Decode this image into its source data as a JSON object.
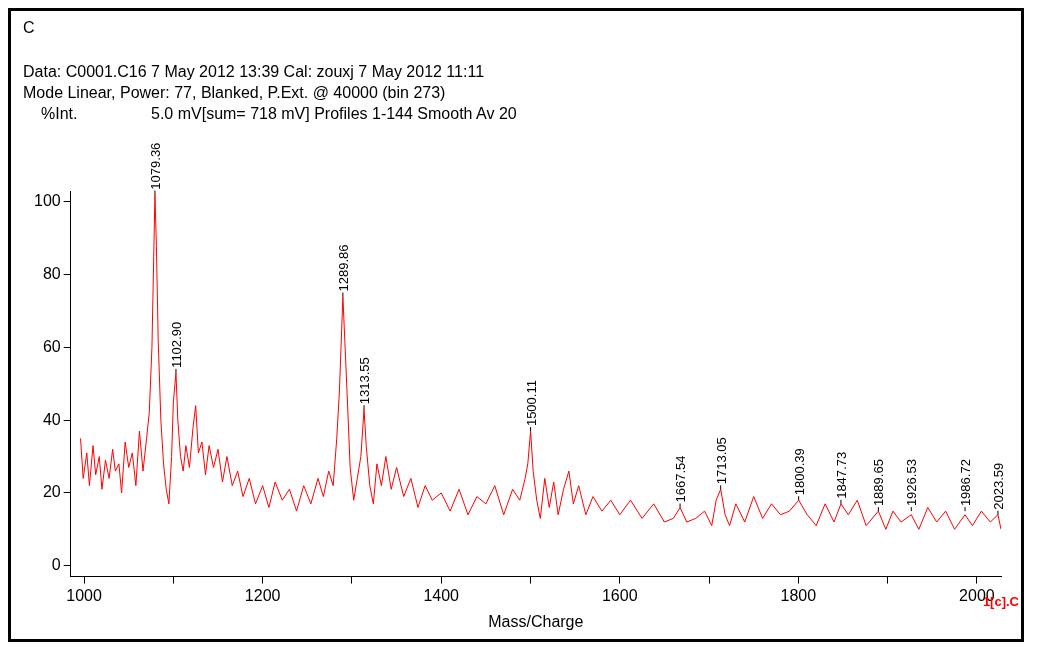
{
  "chart_data": {
    "type": "line",
    "title": "Data: C0001.C16 7 May 2012 13:39 Cal: zouxj 7 May 2012 11:11",
    "subtitle": "Mode Linear, Power: 77, Blanked, P.Ext. @ 40000 (bin 273)",
    "xlabel": "Mass/Charge",
    "ylabel": "%Int.",
    "annotations": [
      "C",
      "5.0 mV[sum= 718 mV]  Profiles 1-144 Smooth Av 20",
      "1[c].C",
      {
        "text": "1079.36",
        "x": 1079.36,
        "y": 102
      },
      {
        "text": "1102.90",
        "x": 1102.9,
        "y": 53
      },
      {
        "text": "1289.86",
        "x": 1289.86,
        "y": 74
      },
      {
        "text": "1313.55",
        "x": 1313.55,
        "y": 43
      },
      {
        "text": "1500.11",
        "x": 1500.11,
        "y": 37
      },
      {
        "text": "1667.54",
        "x": 1667.54,
        "y": 16
      },
      {
        "text": "1713.05",
        "x": 1713.05,
        "y": 21
      },
      {
        "text": "1800.39",
        "x": 1800.39,
        "y": 18
      },
      {
        "text": "1847.73",
        "x": 1847.73,
        "y": 17
      },
      {
        "text": "1889.65",
        "x": 1889.65,
        "y": 15
      },
      {
        "text": "1926.53",
        "x": 1926.53,
        "y": 15
      },
      {
        "text": "1986.72",
        "x": 1986.72,
        "y": 15
      },
      {
        "text": "2023.59",
        "x": 2023.59,
        "y": 14
      }
    ],
    "series": [
      {
        "color": "#ff0000",
        "x": [
          996,
          999,
          1003,
          1006,
          1010,
          1013,
          1017,
          1020,
          1024,
          1028,
          1032,
          1035,
          1039,
          1042,
          1046,
          1050,
          1054,
          1058,
          1062,
          1066,
          1070,
          1073,
          1076,
          1078,
          1079.36,
          1081,
          1083,
          1086,
          1089,
          1092,
          1095,
          1098,
          1100,
          1102.9,
          1105,
          1108,
          1111,
          1114,
          1118,
          1122,
          1125,
          1128,
          1132,
          1136,
          1140,
          1145,
          1150,
          1155,
          1160,
          1166,
          1172,
          1178,
          1185,
          1192,
          1200,
          1207,
          1214,
          1222,
          1230,
          1238,
          1246,
          1254,
          1262,
          1268,
          1274,
          1279,
          1283,
          1286,
          1289.86,
          1292,
          1295,
          1298,
          1302,
          1306,
          1310,
          1313.55,
          1316,
          1320,
          1324,
          1328,
          1333,
          1338,
          1344,
          1350,
          1358,
          1366,
          1374,
          1382,
          1390,
          1400,
          1410,
          1420,
          1430,
          1440,
          1450,
          1460,
          1470,
          1480,
          1488,
          1494,
          1497,
          1500.11,
          1503,
          1507,
          1511,
          1516,
          1521,
          1526,
          1531,
          1537,
          1543,
          1548,
          1554,
          1562,
          1570,
          1580,
          1590,
          1600,
          1612,
          1625,
          1638,
          1650,
          1660,
          1667.54,
          1675,
          1685,
          1695,
          1703,
          1708,
          1713.05,
          1718,
          1723,
          1730,
          1740,
          1750,
          1760,
          1770,
          1780,
          1790,
          1800.39,
          1810,
          1820,
          1830,
          1840,
          1847.73,
          1856,
          1866,
          1876,
          1889.65,
          1898,
          1906,
          1915,
          1926.53,
          1935,
          1945,
          1955,
          1965,
          1975,
          1986.72,
          1995,
          2005,
          2015,
          2023.59,
          2027
        ],
        "values": [
          35,
          24,
          31,
          22,
          33,
          25,
          30,
          21,
          29,
          24,
          32,
          26,
          28,
          20,
          34,
          27,
          31,
          22,
          37,
          26,
          35,
          42,
          60,
          85,
          102,
          88,
          62,
          40,
          28,
          21,
          17,
          30,
          45,
          53,
          40,
          30,
          26,
          33,
          27,
          38,
          44,
          31,
          34,
          25,
          33,
          27,
          32,
          23,
          30,
          22,
          26,
          19,
          24,
          17,
          22,
          16,
          23,
          18,
          21,
          15,
          22,
          17,
          24,
          19,
          26,
          22,
          35,
          48,
          74,
          62,
          45,
          27,
          18,
          24,
          30,
          43,
          33,
          22,
          17,
          28,
          22,
          30,
          21,
          27,
          19,
          24,
          16,
          22,
          18,
          20,
          15,
          21,
          14,
          19,
          17,
          22,
          14,
          21,
          18,
          24,
          28,
          37,
          26,
          18,
          13,
          24,
          16,
          23,
          14,
          21,
          26,
          17,
          22,
          14,
          19,
          15,
          18,
          14,
          18,
          13,
          17,
          12,
          13,
          16,
          12,
          13,
          15,
          11,
          18,
          21,
          14,
          11,
          17,
          12,
          19,
          13,
          17,
          14,
          15,
          18,
          14,
          11,
          17,
          12,
          17,
          14,
          18,
          11,
          15,
          10,
          15,
          12,
          14,
          10,
          16,
          12,
          15,
          10,
          14,
          11,
          15,
          12,
          14,
          10
        ]
      }
    ],
    "xlim": [
      985,
      2027
    ],
    "ylim": [
      -3,
      103
    ],
    "xticks": [
      1000,
      {
        "value": 1100,
        "label": null
      },
      1200,
      {
        "value": 1300,
        "label": null
      },
      1400,
      {
        "value": 1500,
        "label": null
      },
      1600,
      {
        "value": 1700,
        "label": null
      },
      1800,
      {
        "value": 1900,
        "label": null
      },
      2000
    ],
    "yticks": [
      0,
      20,
      40,
      60,
      80,
      100
    ],
    "grid": false,
    "legend": false
  }
}
